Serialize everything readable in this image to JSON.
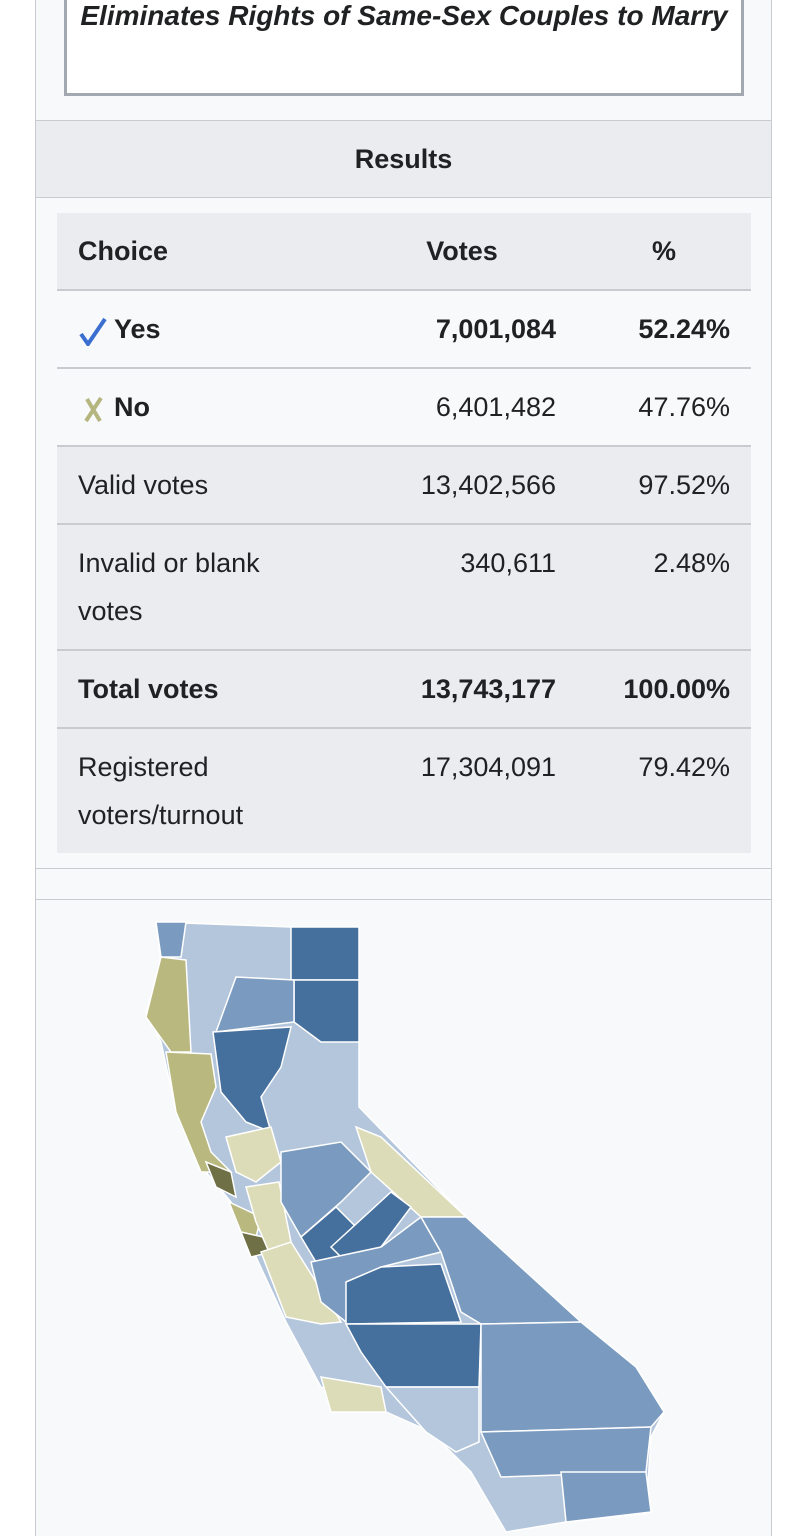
{
  "proposal_title": "Eliminates Rights of Same-Sex Couples to Marry",
  "results": {
    "heading": "Results",
    "table": {
      "header": [
        "Choice",
        "Votes",
        "%"
      ],
      "rows": [
        [
          "Yes",
          "7,001,084",
          "52.24%"
        ],
        [
          "No",
          "6,401,482",
          "47.76%"
        ],
        [
          "Valid votes",
          "13,402,566",
          "97.52%"
        ],
        [
          "Invalid or blank votes",
          "340,611",
          "2.48%"
        ],
        [
          "Total votes",
          "13,743,177",
          "100.00%"
        ],
        [
          "Registered voters/turnout",
          "17,304,091",
          "79.42%"
        ]
      ]
    }
  }
}
